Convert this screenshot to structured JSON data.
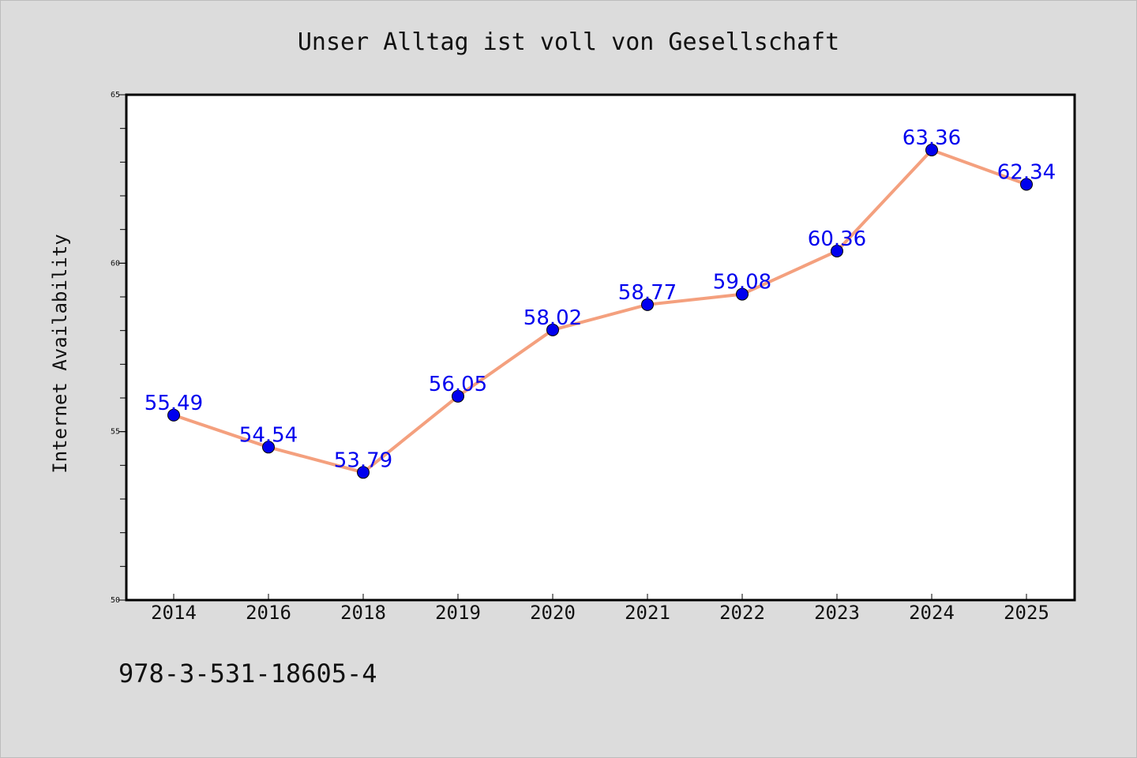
{
  "chart_data": {
    "type": "line",
    "title": "Unser Alltag ist voll von Gesellschaft",
    "xlabel": "",
    "ylabel": "Internet Availability",
    "categories": [
      "2014",
      "2016",
      "2018",
      "2019",
      "2020",
      "2021",
      "2022",
      "2023",
      "2024",
      "2025"
    ],
    "series": [
      {
        "values": [
          55.49,
          54.54,
          53.79,
          56.05,
          58.02,
          58.77,
          59.08,
          60.36,
          63.36,
          62.34
        ],
        "data_labels": [
          "55.49",
          "54.54",
          "53.79",
          "56.05",
          "58.02",
          "58.77",
          "59.08",
          "60.36",
          "63.36",
          "62.34"
        ],
        "line_color": "#f4a07e",
        "marker_color": "#0000ee",
        "label_color": "#0000ee"
      }
    ],
    "ylim": [
      50,
      65
    ],
    "yticks": [
      50,
      55,
      60,
      65
    ],
    "ytick_labels": [
      "50",
      "55",
      "60",
      "65"
    ],
    "grid": false,
    "legend": "none"
  },
  "footnote": "978-3-531-18605-4"
}
